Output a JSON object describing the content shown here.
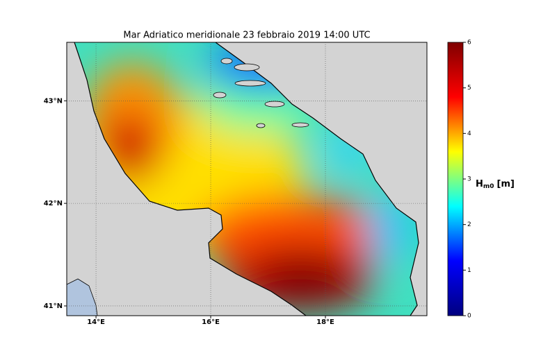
{
  "title": "Mar Adriatico meridionale 23 febbraio 2019  14:00 UTC",
  "map": {
    "xlim": [
      13.49,
      19.77
    ],
    "ylim": [
      40.905,
      43.57
    ],
    "xticks": [
      {
        "value": 14,
        "label": "14°E"
      },
      {
        "value": 16,
        "label": "16°E"
      },
      {
        "value": 18,
        "label": "18°E"
      }
    ],
    "yticks": [
      {
        "value": 41,
        "label": "41°N"
      },
      {
        "value": 42,
        "label": "42°N"
      },
      {
        "value": 43,
        "label": "43°N"
      }
    ],
    "grid": true
  },
  "colorbar": {
    "ylim": [
      0,
      6
    ],
    "ticks": [
      0,
      1,
      2,
      3,
      4,
      5,
      6
    ],
    "label": {
      "symbol": "H",
      "subscript": "m0",
      "unit": "[m]"
    },
    "colors": [
      "#00007f",
      "#0000ff",
      "#00ffff",
      "#ffff00",
      "#ff0000",
      "#7f0000"
    ]
  }
}
